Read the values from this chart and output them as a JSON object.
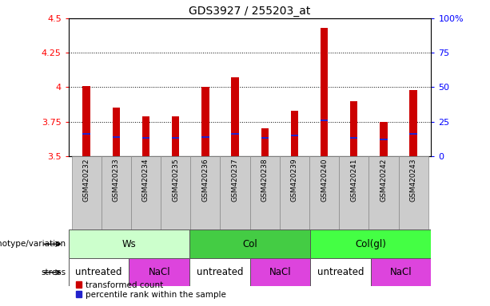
{
  "title": "GDS3927 / 255203_at",
  "samples": [
    "GSM420232",
    "GSM420233",
    "GSM420234",
    "GSM420235",
    "GSM420236",
    "GSM420237",
    "GSM420238",
    "GSM420239",
    "GSM420240",
    "GSM420241",
    "GSM420242",
    "GSM420243"
  ],
  "bar_values": [
    4.01,
    3.85,
    3.79,
    3.79,
    4.0,
    4.07,
    3.7,
    3.83,
    4.43,
    3.9,
    3.75,
    3.98
  ],
  "blue_marker_values": [
    3.66,
    3.64,
    3.63,
    3.63,
    3.64,
    3.66,
    3.63,
    3.65,
    3.76,
    3.63,
    3.62,
    3.66
  ],
  "y_min": 3.5,
  "y_max": 4.5,
  "y_ticks": [
    3.5,
    3.75,
    4.0,
    4.25,
    4.5
  ],
  "y_tick_labels": [
    "3.5",
    "3.75",
    "4",
    "4.25",
    "4.5"
  ],
  "right_y_tick_labels": [
    "0",
    "25",
    "50",
    "75",
    "100%"
  ],
  "bar_color": "#cc0000",
  "blue_color": "#2222cc",
  "bar_bottom": 3.5,
  "genotype_groups": [
    {
      "label": "Ws",
      "start": 0,
      "end": 4,
      "color": "#ccffcc"
    },
    {
      "label": "Col",
      "start": 4,
      "end": 8,
      "color": "#44cc44"
    },
    {
      "label": "Col(gl)",
      "start": 8,
      "end": 12,
      "color": "#44ff44"
    }
  ],
  "stress_groups": [
    {
      "label": "untreated",
      "start": 0,
      "end": 2,
      "color": "#ffffff"
    },
    {
      "label": "NaCl",
      "start": 2,
      "end": 4,
      "color": "#dd44dd"
    },
    {
      "label": "untreated",
      "start": 4,
      "end": 6,
      "color": "#ffffff"
    },
    {
      "label": "NaCl",
      "start": 6,
      "end": 8,
      "color": "#dd44dd"
    },
    {
      "label": "untreated",
      "start": 8,
      "end": 10,
      "color": "#ffffff"
    },
    {
      "label": "NaCl",
      "start": 10,
      "end": 12,
      "color": "#dd44dd"
    }
  ],
  "legend_red_label": "transformed count",
  "legend_blue_label": "percentile rank within the sample",
  "genotype_label": "genotype/variation",
  "stress_label": "stress",
  "dotted_grid_values": [
    3.75,
    4.0,
    4.25
  ],
  "title_fontsize": 10,
  "tick_fontsize": 8,
  "sample_fontsize": 6.5,
  "bar_width": 0.25
}
